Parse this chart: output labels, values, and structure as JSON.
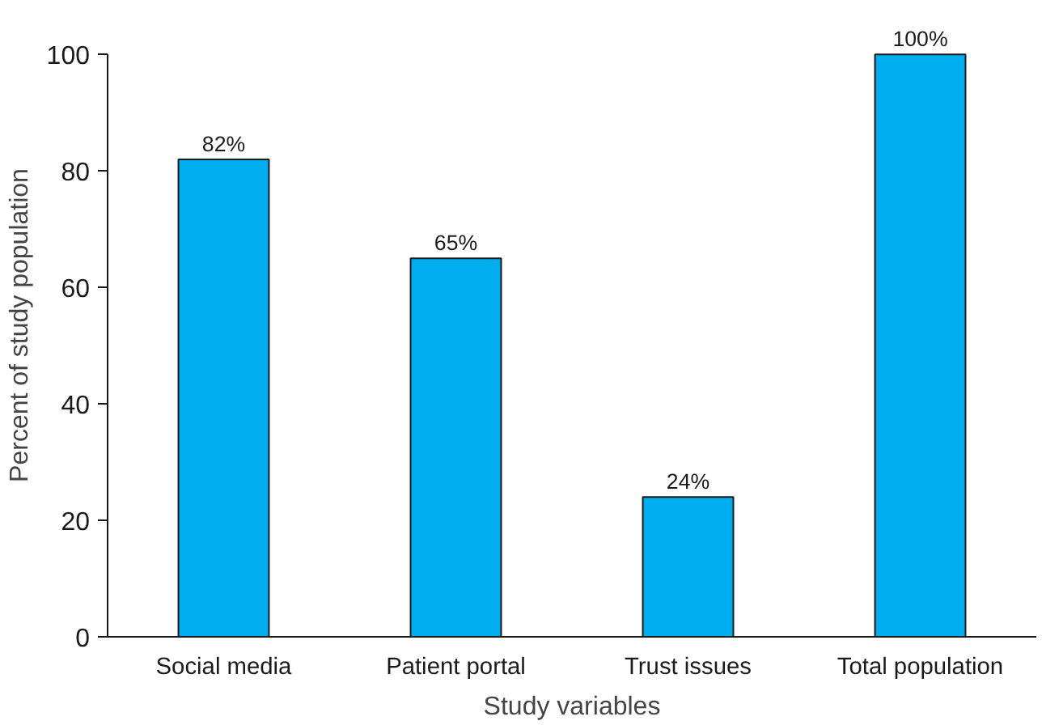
{
  "chart_data": {
    "type": "bar",
    "xlabel": "Study variables",
    "ylabel": "Percent of study population",
    "categories": [
      "Social media",
      "Patient portal",
      "Trust issues",
      "Total population"
    ],
    "values": [
      82,
      65,
      24,
      100
    ],
    "value_labels": [
      "82%",
      "65%",
      "24%",
      "100%"
    ],
    "color": "#00aeef",
    "ylim": [
      0,
      100
    ],
    "yticks": [
      0,
      20,
      40,
      60,
      80,
      100
    ]
  }
}
